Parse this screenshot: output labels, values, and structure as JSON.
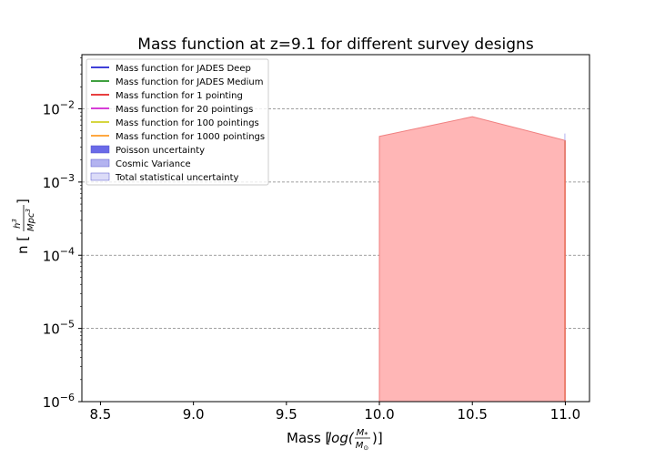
{
  "chart_data": {
    "type": "area",
    "title": "Mass function at z=9.1 for different survey designs",
    "xlabel": "Mass [log(M*/M⊙)]",
    "ylabel": "n [h³/Mpc³]",
    "xlim": [
      8.4,
      11.13
    ],
    "ylim": [
      1e-06,
      0.055
    ],
    "yscale": "log",
    "xticks": [
      "8.5",
      "9.0",
      "9.5",
      "10.0",
      "10.5",
      "11.0"
    ],
    "xtick_values": [
      8.5,
      9.0,
      9.5,
      10.0,
      10.5,
      11.0
    ],
    "yticks": [
      {
        "value": 1e-06,
        "base": "10",
        "exp": "−6"
      },
      {
        "value": 1e-05,
        "base": "10",
        "exp": "−5"
      },
      {
        "value": 0.0001,
        "base": "10",
        "exp": "−4"
      },
      {
        "value": 0.001,
        "base": "10",
        "exp": "−3"
      },
      {
        "value": 0.01,
        "base": "10",
        "exp": "−2"
      }
    ],
    "grid": "y-dashed",
    "legend_position": "top-left",
    "legend": [
      {
        "label": "Mass function for JADES Deep",
        "kind": "line",
        "color": "#0000cc"
      },
      {
        "label": "Mass function for JADES Medium",
        "kind": "line",
        "color": "#008000"
      },
      {
        "label": "Mass function for 1 pointing",
        "kind": "line",
        "color": "#e00000"
      },
      {
        "label": "Mass function for 20 pointings",
        "kind": "line",
        "color": "#cc00cc"
      },
      {
        "label": "Mass function for 100 pointings",
        "kind": "line",
        "color": "#c8c800"
      },
      {
        "label": "Mass function for 1000 pointings",
        "kind": "line",
        "color": "#ff8c00"
      },
      {
        "label": "Poisson uncertainty",
        "kind": "patch",
        "color": "#6a6ae8"
      },
      {
        "label": "Cosmic Variance",
        "kind": "patch",
        "color": "#b3b3f0"
      },
      {
        "label": "Total statistical uncertainty",
        "kind": "patch",
        "color": "#dcdcf8"
      }
    ],
    "series": [
      {
        "fill": "#ffb6b6",
        "edge": "#f08080",
        "x": [
          10.0,
          10.5,
          11.0
        ],
        "upper": [
          0.0042,
          0.0078,
          0.0037
        ],
        "lower": [
          1e-06,
          1e-06,
          1e-06
        ]
      },
      {
        "fill": "#b3b3f0",
        "x": [
          10.995,
          11.0
        ],
        "upper": [
          0.0046,
          0.0046
        ],
        "lower": [
          0.0012,
          0.0012
        ]
      }
    ]
  }
}
